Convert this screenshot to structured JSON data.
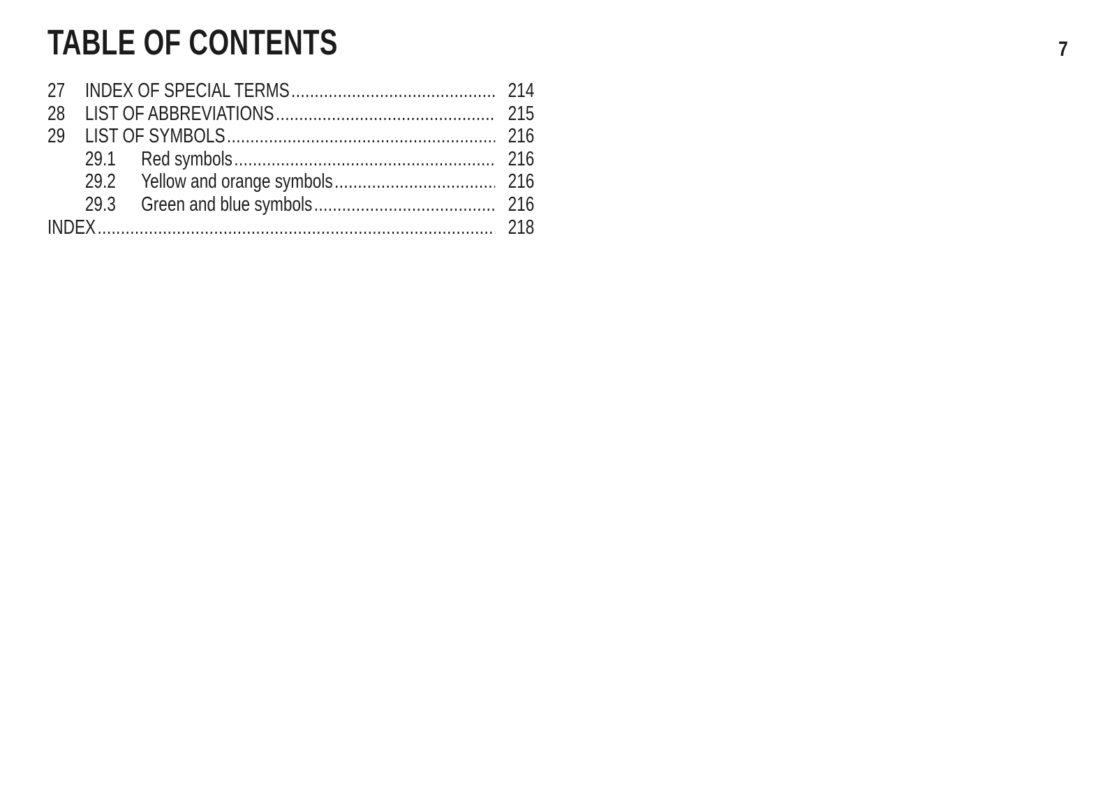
{
  "page": {
    "title": "TABLE OF CONTENTS",
    "page_number": "7"
  },
  "toc": {
    "entries": [
      {
        "level": 1,
        "number": "27",
        "label": "INDEX OF SPECIAL TERMS",
        "page": "214"
      },
      {
        "level": 1,
        "number": "28",
        "label": "LIST OF ABBREVIATIONS",
        "page": "215"
      },
      {
        "level": 1,
        "number": "29",
        "label": "LIST OF SYMBOLS",
        "page": "216"
      },
      {
        "level": 2,
        "number": "29.1",
        "label": "Red symbols",
        "page": "216"
      },
      {
        "level": 2,
        "number": "29.2",
        "label": "Yellow and orange symbols",
        "page": "216"
      },
      {
        "level": 2,
        "number": "29.3",
        "label": "Green and blue symbols",
        "page": "216"
      },
      {
        "level": 0,
        "number": "",
        "label": "INDEX",
        "page": "218"
      }
    ]
  },
  "colors": {
    "text": "#1b1b1b",
    "background": "#ffffff"
  }
}
